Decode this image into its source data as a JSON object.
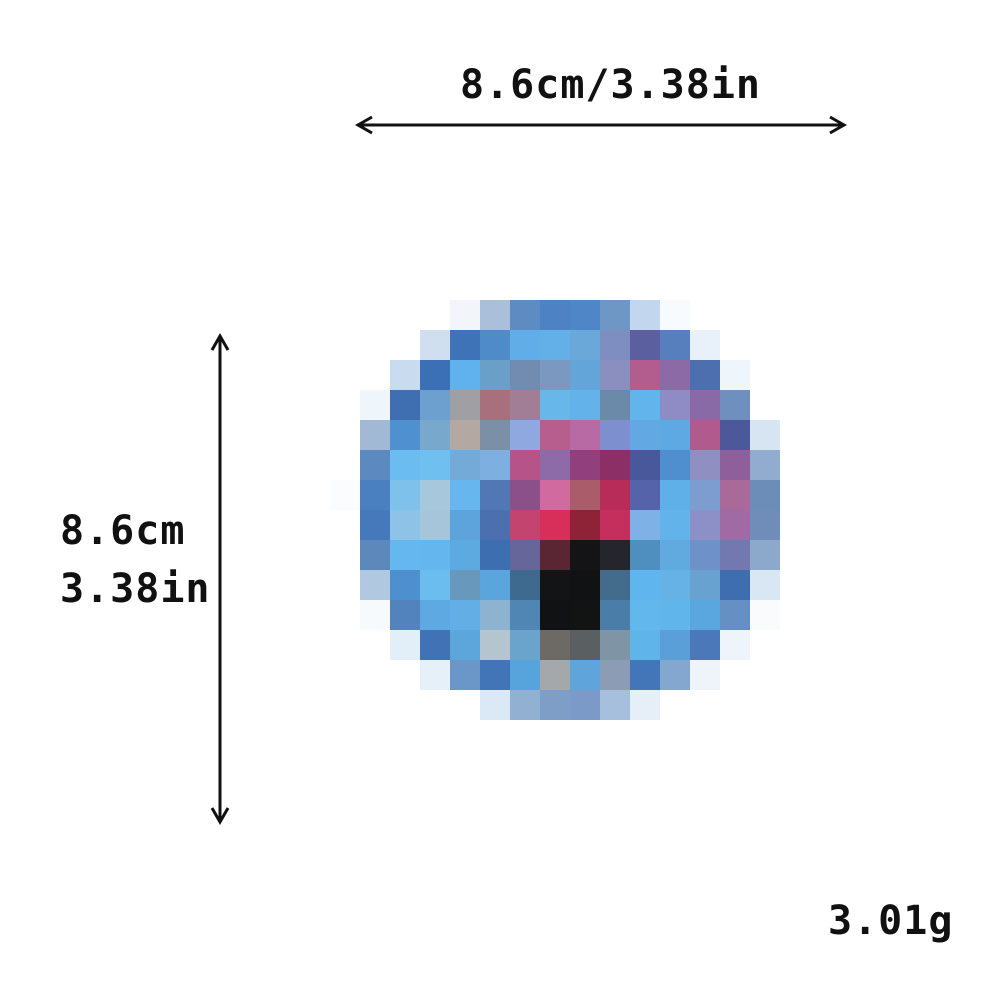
{
  "dimensions": {
    "width_label": "8.6cm/3.38in",
    "height_cm_label": "8.6cm",
    "height_in_label": "3.38in",
    "weight_label": "3.01g"
  },
  "product_image": {
    "description": "pixelated round blue badge image",
    "palette": [
      "#eef5fb",
      "#aec0d9",
      "#5f8fc6",
      "#4c84c6",
      "#5a8fc8",
      "#6c98c8",
      "#c9dcef",
      "#f6f9fc",
      "#3e74b7",
      "#5aa8e6",
      "#68b7ec",
      "#7db4e2",
      "#8a8fc2",
      "#5c5fa0",
      "#6f8cc1",
      "#f7f9fc",
      "#b55f8f",
      "#a45b9b",
      "#3e6db0",
      "#9e9ea2",
      "#aa6f7b",
      "#a27e96",
      "#b24f82",
      "#8a4d7f",
      "#c74a77",
      "#d82f5a",
      "#8e203a",
      "#2a2c3a",
      "#101214",
      "#3f6a8f",
      "#b9c6d1",
      "#6f6b68",
      "#a4a8aa",
      "#dfe8f4",
      "#e8eef6",
      "#8eaed2"
    ]
  }
}
